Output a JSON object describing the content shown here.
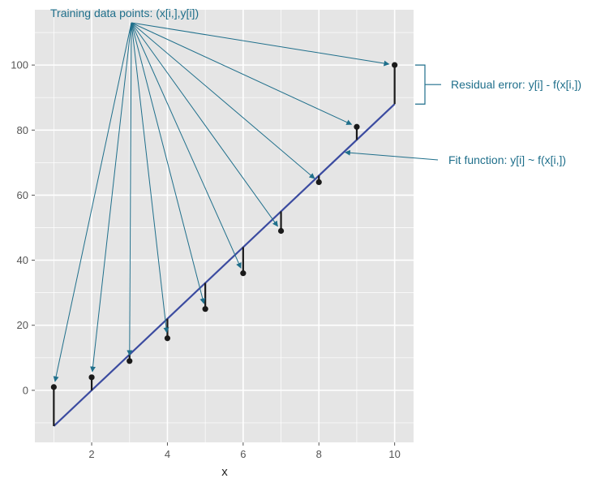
{
  "chart_data": {
    "type": "scatter",
    "title": "",
    "xlabel": "x",
    "ylabel": "",
    "xlim": [
      0.5,
      10.5
    ],
    "ylim": [
      -16,
      117
    ],
    "x_ticks": [
      2,
      4,
      6,
      8,
      10
    ],
    "y_ticks": [
      0,
      20,
      40,
      60,
      80,
      100
    ],
    "grid": true,
    "points": [
      {
        "x": 1,
        "y": 1
      },
      {
        "x": 2,
        "y": 4
      },
      {
        "x": 3,
        "y": 9
      },
      {
        "x": 4,
        "y": 16
      },
      {
        "x": 5,
        "y": 25
      },
      {
        "x": 6,
        "y": 36
      },
      {
        "x": 7,
        "y": 49
      },
      {
        "x": 8,
        "y": 64
      },
      {
        "x": 9,
        "y": 81
      },
      {
        "x": 10,
        "y": 100
      }
    ],
    "fit_line": {
      "intercept": -22,
      "slope": 11
    },
    "annotations": {
      "training_points": "Training data points: (x[i,],y[i])",
      "residual": "Residual error: y[i] - f(x[i,])",
      "fit": "Fit function: y[i] ~ f(x[i,])"
    },
    "colors": {
      "panel": "#e5e5e5",
      "grid": "#ffffff",
      "points": "#1a1a1a",
      "residuals": "#1a1a1a",
      "fit_line": "#3b4ba0",
      "annotation": "#1f6f8b"
    }
  }
}
